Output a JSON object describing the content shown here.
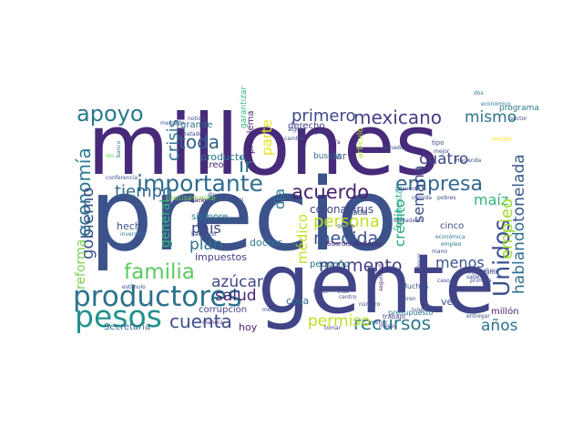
{
  "words": [
    {
      "text": "millones",
      "color": "#472a7a"
    },
    {
      "text": "precio",
      "color": "#3b528b"
    },
    {
      "text": "gente",
      "color": "#414487"
    },
    {
      "text": "productores",
      "color": "#2c728e"
    },
    {
      "text": "pesos",
      "color": "#21918c"
    },
    {
      "text": "importante",
      "color": "#2f6c8e"
    },
    {
      "text": "apoyo",
      "color": "#2a788e"
    },
    {
      "text": "familia",
      "color": "#5ec962"
    },
    {
      "text": "mexicano",
      "color": "#433e85"
    },
    {
      "text": "mismo",
      "color": "#2c738e"
    },
    {
      "text": "primero",
      "color": "#3e4a89"
    },
    {
      "text": "toda",
      "color": "#32648e"
    },
    {
      "text": "acuerdo",
      "color": "#481f70"
    },
    {
      "text": "empresa",
      "color": "#31688e"
    },
    {
      "text": "cuatro",
      "color": "#404688"
    },
    {
      "text": "economía",
      "color": "#2a788e"
    },
    {
      "text": "crisis",
      "color": "#2a788e"
    },
    {
      "text": "tiempo",
      "color": "#31688e"
    },
    {
      "text": "gobierno",
      "color": "#3b528b"
    },
    {
      "text": "semana",
      "color": "#3e4989"
    },
    {
      "text": "Unidos",
      "color": "#3b528b"
    },
    {
      "text": "maíz",
      "color": "#2fb47c"
    },
    {
      "text": "coronavirus",
      "color": "#404688"
    },
    {
      "text": "persona",
      "color": "#bddf26"
    },
    {
      "text": "medida",
      "color": "#3a538b"
    },
    {
      "text": "momento",
      "color": "#433e85"
    },
    {
      "text": "menos",
      "color": "#3b528b"
    },
    {
      "text": "crédito",
      "color": "#22a884"
    },
    {
      "text": "empleo",
      "color": "#a2da37"
    },
    {
      "text": "hablando",
      "color": "#2d708e"
    },
    {
      "text": "tonelada",
      "color": "#375a8c"
    },
    {
      "text": "cuenta",
      "color": "#3b518b"
    },
    {
      "text": "salud",
      "color": "#482475"
    },
    {
      "text": "azúcar",
      "color": "#3e4989"
    },
    {
      "text": "país",
      "color": "#414487"
    },
    {
      "text": "plan",
      "color": "#2e6e8e"
    },
    {
      "text": "recursos",
      "color": "#2a788e"
    },
    {
      "text": "permiso",
      "color": "#bddf26"
    },
    {
      "text": "años",
      "color": "#2d708e"
    },
    {
      "text": "parte",
      "color": "#e5e419"
    },
    {
      "text": "general",
      "color": "#35b779"
    },
    {
      "text": "reforma",
      "color": "#7ad151"
    },
    {
      "text": "médico",
      "color": "#c8e020"
    },
    {
      "text": "día",
      "color": "#2a788e"
    },
    {
      "text": "ir",
      "color": "#2a788e"
    },
    {
      "text": "impuestos",
      "color": "#433e85"
    },
    {
      "text": "doctor",
      "color": "#2a788e"
    },
    {
      "text": "hecho",
      "color": "#3b528b"
    },
    {
      "text": "Secretaría",
      "color": "#31688e"
    },
    {
      "text": "corrupción",
      "color": "#433e85"
    },
    {
      "text": "hoy",
      "color": "#481f70"
    },
    {
      "text": "vez",
      "color": "#3b528b"
    },
    {
      "text": "millón",
      "color": "#481f70"
    },
    {
      "text": "cosa",
      "color": "#2e6e8e"
    },
    {
      "text": "pequeño",
      "color": "#2a788e"
    },
    {
      "text": "cinco",
      "color": "#3e4a89"
    },
    {
      "text": "cada",
      "color": "#404688"
    },
    {
      "text": "bienestar",
      "color": "#22a884"
    },
    {
      "text": "siempre",
      "color": "#2a788e"
    },
    {
      "text": "problema",
      "color": "#482475"
    },
    {
      "text": "garantizar",
      "color": "#35b779"
    },
    {
      "text": "producto",
      "color": "#2a788e"
    },
    {
      "text": "dar",
      "color": "#3b528b"
    },
    {
      "text": "derecho",
      "color": "#433e85"
    },
    {
      "text": "programa",
      "color": "#2a788e"
    },
    {
      "text": "creo",
      "color": "#482475"
    },
    {
      "text": "buscar",
      "color": "#31688e"
    },
    {
      "text": "grande",
      "color": "#2c728e"
    },
    {
      "text": "artículo",
      "color": "#b5de2b"
    },
    {
      "text": "Guardia Nacional",
      "color": "#482475"
    },
    {
      "text": "precisamente",
      "color": "#7ad151"
    },
    {
      "text": "presupuesto",
      "color": "#2a788e"
    },
    {
      "text": "trabajo",
      "color": "#433e85"
    },
    {
      "text": "Muchas",
      "color": "#3b528b"
    },
    {
      "text": "hacer",
      "color": "#440154"
    },
    {
      "text": "mercado",
      "color": "#3b528b"
    },
    {
      "text": "noticia",
      "color": "#3e4a89"
    },
    {
      "text": "tratado",
      "color": "#3e4a89"
    },
    {
      "text": "banco",
      "color": "#2a788e"
    },
    {
      "text": "conferencia",
      "color": "#3b528b"
    },
    {
      "text": "ido",
      "color": "#6ece58"
    },
    {
      "text": "dos",
      "color": "#2a788e"
    },
    {
      "text": "algún",
      "color": "#3e4a89"
    },
    {
      "text": "digo",
      "color": "#433e85"
    },
    {
      "text": "cambio",
      "color": "#3b528b"
    },
    {
      "text": "obra",
      "color": "#472a7a"
    },
    {
      "text": "tipo",
      "color": "#3e4a89"
    },
    {
      "text": "mejor",
      "color": "#3e4a89"
    },
    {
      "text": "económico",
      "color": "#2a788e"
    },
    {
      "text": "recibir",
      "color": "#fde725"
    },
    {
      "text": "inversión",
      "color": "#2a788e"
    },
    {
      "text": "haciendo",
      "color": "#3e4a89"
    },
    {
      "text": "pobres",
      "color": "#3e4a89"
    },
    {
      "text": "quiero",
      "color": "#3e4a89"
    },
    {
      "text": "manera",
      "color": "#482475"
    },
    {
      "text": "mensaje",
      "color": "#3e4a89"
    },
    {
      "text": "estímulo",
      "color": "#3b528b"
    },
    {
      "text": "empleo",
      "color": "#2a788e"
    },
    {
      "text": "económica",
      "color": "#2a788e"
    },
    {
      "text": "seguridad",
      "color": "#482475"
    },
    {
      "text": "meses",
      "color": "#3e4a89"
    },
    {
      "text": "tomar",
      "color": "#3e4a89"
    },
    {
      "text": "llevar",
      "color": "#3e4a89"
    },
    {
      "text": "caso",
      "color": "#3e4a89"
    },
    {
      "text": "entregar",
      "color": "#3b528b"
    },
    {
      "text": "ahora",
      "color": "#3b528b"
    },
    {
      "text": "pasado",
      "color": "#3e4a89"
    },
    {
      "text": "mano",
      "color": "#3e4a89"
    },
    {
      "text": "lunes",
      "color": "#3e4a89"
    },
    {
      "text": "Miren",
      "color": "#3e4a89"
    },
    {
      "text": "sabe",
      "color": "#3e4a89"
    },
    {
      "text": "importante",
      "color": "#3e4a89"
    },
    {
      "text": "Senado",
      "color": "#3e4a89"
    },
    {
      "text": "comida",
      "color": "#3e4a89"
    },
    {
      "text": "ciudadano",
      "color": "#3e4a89"
    },
    {
      "text": "número",
      "color": "#3e4a89"
    },
    {
      "text": "menor",
      "color": "#3e4a89"
    },
    {
      "text": "tener",
      "color": "#3e4a89"
    },
    {
      "text": "centro",
      "color": "#3e4a89"
    },
    {
      "text": "vida",
      "color": "#3e4a89"
    },
    {
      "text": "dinero",
      "color": "#3e4a89"
    },
    {
      "text": "mil",
      "color": "#3e4a89"
    },
    {
      "text": "primera",
      "color": "#3e4a89"
    },
    {
      "text": "sector",
      "color": "#3e4a89"
    },
    {
      "text": "Hacienda",
      "color": "#3e4a89"
    }
  ]
}
